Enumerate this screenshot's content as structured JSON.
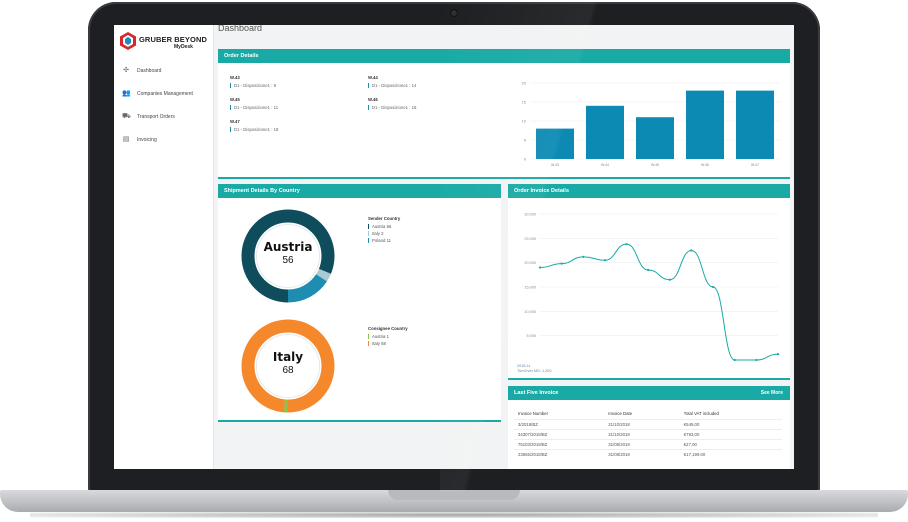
{
  "app": {
    "brand": "GRUBER BEYOND",
    "product": "MyDesk",
    "page_title": "Dashboard"
  },
  "sidebar": {
    "items": [
      {
        "label": "Dashboard",
        "icon": "dashboard-icon"
      },
      {
        "label": "Companies Management",
        "icon": "users-icon"
      },
      {
        "label": "Transport Orders",
        "icon": "truck-icon"
      },
      {
        "label": "Invoicing",
        "icon": "document-icon"
      }
    ]
  },
  "order_details": {
    "title": "Order Details",
    "weeks": [
      {
        "label": "W.43",
        "value": "D1 - Disposizione1 : 8"
      },
      {
        "label": "W.44",
        "value": "D1 - Disposizione1 : 14"
      },
      {
        "label": "W.45",
        "value": "D1 - Disposizione1 : 11"
      },
      {
        "label": "W.46",
        "value": "D1 - Disposizione1 : 18"
      },
      {
        "label": "W.47",
        "value": "D1 - Disposizione1 : 18"
      }
    ]
  },
  "shipment": {
    "title": "Shipment Details By Country",
    "sender": {
      "title": "Sender Country",
      "center_name": "Austria",
      "center_value": "56",
      "entries": [
        {
          "label": "Austria 56",
          "value": 56,
          "color": "#0f4c5c"
        },
        {
          "label": "Italy 2",
          "value": 2,
          "color": "#a9c9d3"
        },
        {
          "label": "Poland 11",
          "value": 11,
          "color": "#1f8db1"
        }
      ]
    },
    "consignee": {
      "title": "Consignee Country",
      "center_name": "Italy",
      "center_value": "68",
      "entries": [
        {
          "label": "Austria 1",
          "value": 1,
          "color": "#8bc34a"
        },
        {
          "label": "Italy 68",
          "value": 68,
          "color": "#f5882a"
        }
      ]
    }
  },
  "invoice_details": {
    "title": "Order Invoice Details",
    "footer_line1": "2018-11",
    "footer_line2": "TurnOver MD: 1,200"
  },
  "last_five": {
    "title": "Last Five Invoice",
    "see_more": "See More",
    "columns": [
      "Invoice Number",
      "Invoice Date",
      "Total VAT included"
    ],
    "rows": [
      [
        "3/2018/BZ",
        "21/10/2018",
        "€549,00"
      ],
      [
        "34307/2018/BZ",
        "31/10/2018",
        "€793,00"
      ],
      [
        "75103/2018/BZ",
        "31/08/2019",
        "€27,00"
      ],
      [
        "23665/2018/BZ",
        "31/08/2019",
        "€17,199.00"
      ]
    ]
  },
  "chart_data": [
    {
      "type": "bar",
      "categories": [
        "W.43",
        "W.44",
        "W.45",
        "W.46",
        "W.47"
      ],
      "values": [
        8,
        14,
        11,
        18,
        18
      ],
      "ylim": [
        0,
        20
      ],
      "yticks": [
        "20",
        "15",
        "10",
        "5",
        "0"
      ],
      "color": "#0c8ab4",
      "grid": true
    },
    {
      "type": "line",
      "x": [
        1,
        2,
        3,
        4,
        5,
        6,
        7,
        8,
        9,
        10,
        11,
        12
      ],
      "values": [
        19000,
        19800,
        21200,
        20500,
        23800,
        18500,
        16500,
        22500,
        15000,
        0,
        0,
        1200
      ],
      "ylim": [
        0,
        30000
      ],
      "yticks": [
        "30,000",
        "25,000",
        "20,000",
        "15,000",
        "10,000",
        "5,000"
      ],
      "color": "#19aaa6",
      "grid": true
    }
  ]
}
